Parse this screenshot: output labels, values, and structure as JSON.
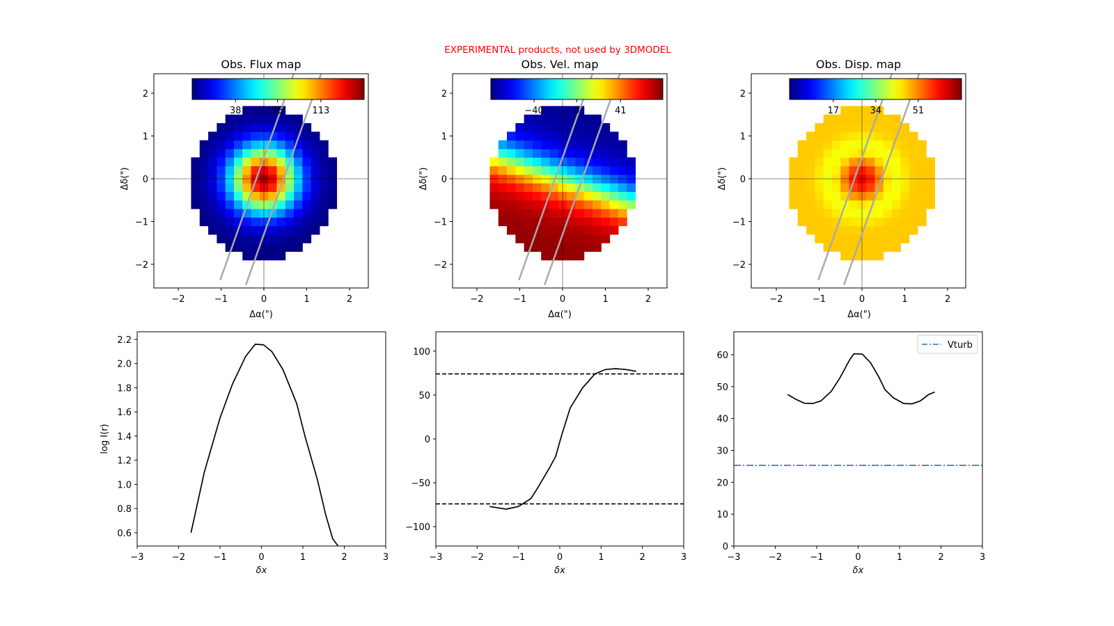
{
  "banner": {
    "text": "EXPERIMENTAL products, not used by 3DMODEL",
    "color": "#ff0000"
  },
  "chart_data": [
    {
      "type": "heatmap",
      "title": "Obs. Flux map",
      "xlabel": "Δα(\")",
      "ylabel": "Δδ(\")",
      "xlim": [
        -2.57,
        2.44
      ],
      "ylim": [
        -2.55,
        2.45
      ],
      "xticks": [
        "−2",
        "−1",
        "0",
        "1",
        "2"
      ],
      "yticks": [
        "−2",
        "−1",
        "0",
        "1",
        "2"
      ],
      "colormap": "jet",
      "colorbar": {
        "range": [
          0,
          151
        ],
        "ticks": [
          38,
          75,
          113
        ],
        "tick_labels": [
          "38",
          "75",
          "113"
        ],
        "placement": "top"
      },
      "slit_lines": [
        [
          [
            -1.02,
            -2.37
          ],
          [
            0.46,
            1.79
          ]
        ],
        [
          [
            -0.42,
            -2.48
          ],
          [
            1.1,
            1.79
          ]
        ]
      ]
    },
    {
      "type": "heatmap",
      "title": "Obs. Vel. map",
      "xlabel": "Δα(\")",
      "ylabel": "Δδ(\")",
      "xlim": [
        -2.57,
        2.44
      ],
      "ylim": [
        -2.55,
        2.45
      ],
      "xticks": [
        "−2",
        "−1",
        "0",
        "1",
        "2"
      ],
      "yticks": [
        "−2",
        "−1",
        "0",
        "1",
        "2"
      ],
      "colormap": "jet",
      "colorbar": {
        "range": [
          -80.5,
          80.6
        ],
        "ticks": [
          -40,
          0,
          41
        ],
        "tick_labels": [
          "−40",
          "0",
          "41"
        ],
        "placement": "top"
      },
      "slit_lines": [
        [
          [
            -1.02,
            -2.37
          ],
          [
            0.46,
            1.79
          ]
        ],
        [
          [
            -0.42,
            -2.48
          ],
          [
            1.1,
            1.79
          ]
        ]
      ]
    },
    {
      "type": "heatmap",
      "title": "Obs. Disp. map",
      "xlabel": "Δα(\")",
      "ylabel": "Δδ(\")",
      "xlim": [
        -2.57,
        2.44
      ],
      "ylim": [
        -2.55,
        2.45
      ],
      "xticks": [
        "−2",
        "−1",
        "0",
        "1",
        "2"
      ],
      "yticks": [
        "−2",
        "−1",
        "0",
        "1",
        "2"
      ],
      "colormap": "jet",
      "colorbar": {
        "range": [
          -0.5,
          68.3
        ],
        "ticks": [
          17,
          34,
          51
        ],
        "tick_labels": [
          "17",
          "34",
          "51"
        ],
        "placement": "top"
      },
      "slit_lines": [
        [
          [
            -1.02,
            -2.37
          ],
          [
            0.46,
            1.79
          ]
        ],
        [
          [
            -0.42,
            -2.48
          ],
          [
            1.1,
            1.79
          ]
        ]
      ]
    },
    {
      "type": "line",
      "xlabel": "δx",
      "ylabel": "log I(r)",
      "xlim": [
        -3,
        3
      ],
      "ylim": [
        0.49,
        2.263
      ],
      "xticks": [
        -3,
        -2,
        -1,
        0,
        1,
        2,
        3
      ],
      "xtick_labels": [
        "−3",
        "−2",
        "−1",
        "0",
        "1",
        "2",
        "3"
      ],
      "yticks": [
        0.6,
        0.8,
        1.0,
        1.2,
        1.4,
        1.6,
        1.8,
        2.0,
        2.2
      ],
      "ytick_labels": [
        "0.6",
        "0.8",
        "1.0",
        "1.2",
        "1.4",
        "1.6",
        "1.8",
        "2.0",
        "2.2"
      ],
      "series": [
        {
          "color": "#000000",
          "x": [
            -1.7,
            -1.38,
            -1.0,
            -0.7,
            -0.38,
            -0.15,
            0.05,
            0.25,
            0.52,
            0.85,
            1.05,
            1.35,
            1.55,
            1.72,
            1.85
          ],
          "y": [
            0.6,
            1.1,
            1.55,
            1.83,
            2.06,
            2.16,
            2.155,
            2.1,
            1.95,
            1.67,
            1.4,
            1.04,
            0.75,
            0.55,
            0.49
          ]
        }
      ]
    },
    {
      "type": "line",
      "xlabel": "δx",
      "ylabel": "",
      "xlim": [
        -3,
        3
      ],
      "ylim": [
        -122,
        122
      ],
      "xticks": [
        -3,
        -2,
        -1,
        0,
        1,
        2,
        3
      ],
      "xtick_labels": [
        "−3",
        "−2",
        "−1",
        "0",
        "1",
        "2",
        "3"
      ],
      "yticks": [
        -100,
        -50,
        0,
        50,
        100
      ],
      "ytick_labels": [
        "−100",
        "−50",
        "0",
        "50",
        "100"
      ],
      "series": [
        {
          "color": "#000000",
          "x": [
            -1.7,
            -1.3,
            -1.0,
            -0.7,
            -0.55,
            -0.4,
            -0.25,
            -0.1,
            0.05,
            0.25,
            0.55,
            0.85,
            1.1,
            1.35,
            1.6,
            1.85
          ],
          "y": [
            -77,
            -80,
            -77,
            -68,
            -57,
            -45,
            -33,
            -20,
            5,
            35,
            58,
            74,
            79,
            80,
            79,
            77
          ]
        }
      ],
      "hlines": [
        {
          "y": 74,
          "style": "dashed",
          "color": "#000000"
        },
        {
          "y": -74,
          "style": "dashed",
          "color": "#000000"
        }
      ]
    },
    {
      "type": "line",
      "xlabel": "δx",
      "ylabel": "",
      "xlim": [
        -3,
        3
      ],
      "ylim": [
        0,
        67.2
      ],
      "xticks": [
        -3,
        -2,
        -1,
        0,
        1,
        2,
        3
      ],
      "xtick_labels": [
        "−3",
        "−2",
        "−1",
        "0",
        "1",
        "2",
        "3"
      ],
      "yticks": [
        0,
        10,
        20,
        30,
        40,
        50,
        60
      ],
      "ytick_labels": [
        "0",
        "10",
        "20",
        "30",
        "40",
        "50",
        "60"
      ],
      "series": [
        {
          "color": "#000000",
          "x": [
            -1.7,
            -1.5,
            -1.3,
            -1.1,
            -0.9,
            -0.65,
            -0.45,
            -0.2,
            -0.1,
            0.1,
            0.3,
            0.5,
            0.65,
            0.85,
            1.1,
            1.3,
            1.5,
            1.7,
            1.85
          ],
          "y": [
            47.5,
            46,
            44.8,
            44.7,
            45.5,
            48.5,
            52.5,
            58.5,
            60.3,
            60.2,
            57.5,
            53,
            49,
            46.5,
            44.7,
            44.6,
            45.5,
            47.5,
            48.3
          ]
        }
      ],
      "hlines": [
        {
          "y": 25.3,
          "style": "dashdot",
          "color": "#1f77b4",
          "name": "Vturb"
        }
      ],
      "legend": {
        "placement": "top-right",
        "entries": [
          "Vturb"
        ]
      }
    }
  ]
}
